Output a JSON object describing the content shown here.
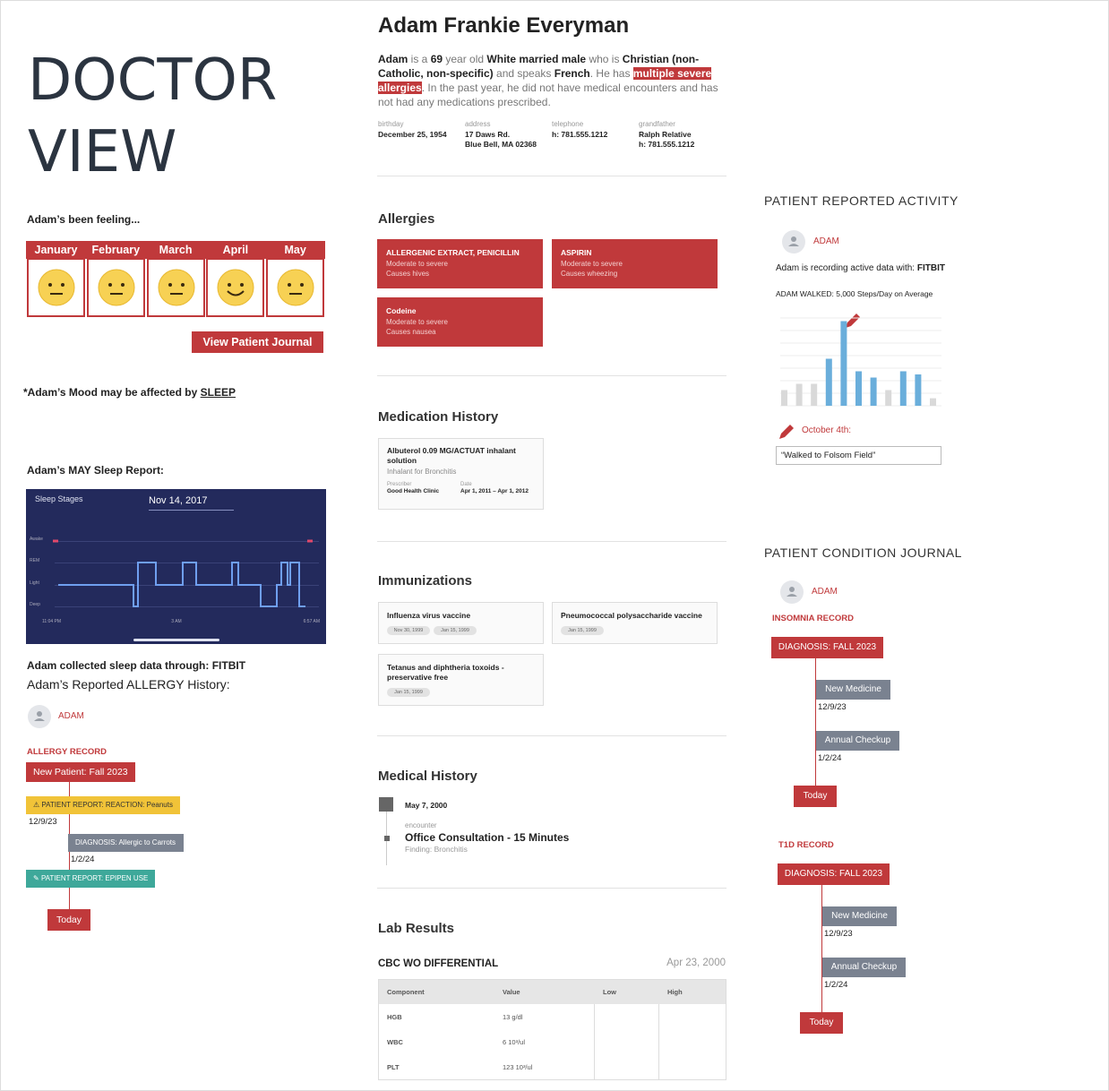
{
  "doctor_view": {
    "title": [
      "DOCTOR",
      "VIEW"
    ]
  },
  "mood": {
    "heading": "Adam’s been feeling...",
    "months": [
      {
        "name": "January",
        "face": "neutral"
      },
      {
        "name": "February",
        "face": "neutral"
      },
      {
        "name": "March",
        "face": "neutral"
      },
      {
        "name": "April",
        "face": "happy"
      },
      {
        "name": "May",
        "face": "neutral"
      }
    ],
    "button": "View Patient Journal",
    "note": "*Adam’s Mood may be affected by ",
    "note_link": "SLEEP"
  },
  "sleep": {
    "heading": "Adam’s MAY Sleep Report:",
    "chart_title": "Sleep Stages",
    "date": "Nov 14, 2017",
    "stages": [
      "Awake",
      "REM",
      "Light",
      "Deep"
    ],
    "times": [
      "11:04 PM",
      "3 AM",
      "6:57 AM"
    ],
    "source_text": "Adam collected sleep data through: ",
    "source": "FITBIT"
  },
  "allergy_history": {
    "heading": "Adam’s Reported ALLERGY History:",
    "user": "ADAM",
    "record": "ALLERGY RECORD",
    "events": [
      {
        "label": "New Patient: Fall 2023",
        "kind": "red"
      },
      {
        "label": "PATIENT REPORT: REACTION: Peanuts",
        "kind": "yellow",
        "date": "12/9/23"
      },
      {
        "label": "DIAGNOSIS: Allergic to Carrots",
        "kind": "gray",
        "date": "1/2/24"
      },
      {
        "label": "PATIENT REPORT: EPIPEN USE",
        "kind": "teal"
      },
      {
        "label": "Today",
        "kind": "red"
      }
    ]
  },
  "patient": {
    "name": "Adam Frankie Everyman",
    "summary": [
      {
        "text": "Adam",
        "style": "bold"
      },
      {
        "text": " is a ",
        "style": "plain"
      },
      {
        "text": "69",
        "style": "bold"
      },
      {
        "text": " year old ",
        "style": "plain"
      },
      {
        "text": "White married male",
        "style": "bold"
      },
      {
        "text": " who is ",
        "style": "plain"
      },
      {
        "text": "Christian (non-Catholic, non-specific)",
        "style": "bold"
      },
      {
        "text": " and speaks ",
        "style": "plain"
      },
      {
        "text": "French",
        "style": "bold"
      },
      {
        "text": ". He has ",
        "style": "plain"
      },
      {
        "text": "multiple severe allergies",
        "style": "highlight"
      },
      {
        "text": ". In the past year, he did not have medical encounters and has not had any medications prescribed.",
        "style": "plain"
      }
    ],
    "details": [
      {
        "label": "birthday",
        "lines": [
          "December 25, 1954"
        ]
      },
      {
        "label": "address",
        "lines": [
          "17 Daws Rd.",
          "Blue Bell, MA 02368"
        ]
      },
      {
        "label": "telephone",
        "lines": [
          "h: 781.555.1212"
        ]
      },
      {
        "label": "grandfather",
        "lines": [
          "Ralph Relative",
          "h: 781.555.1212"
        ]
      }
    ]
  },
  "allergies": {
    "heading": "Allergies",
    "items": [
      {
        "name": "ALLERGENIC EXTRACT, PENICILLIN",
        "severity": "Moderate to severe",
        "reaction": "Causes hives"
      },
      {
        "name": "ASPIRIN",
        "severity": "Moderate to severe",
        "reaction": "Causes wheezing"
      },
      {
        "name": "Codeine",
        "severity": "Moderate to severe",
        "reaction": "Causes nausea"
      }
    ]
  },
  "medications": {
    "heading": "Medication History",
    "items": [
      {
        "name": "Albuterol 0.09 MG/ACTUAT inhalant solution",
        "note": "Inhalant for Bronchitis",
        "prescriber_label": "Prescriber",
        "prescriber": "Good Health Clinic",
        "date_label": "Date",
        "date": "Apr 1, 2011 – Apr 1, 2012"
      }
    ]
  },
  "immunizations": {
    "heading": "Immunizations",
    "items": [
      {
        "name": "Influenza virus vaccine",
        "dates": [
          "Nov 30, 1999",
          "Jan 15, 1999"
        ]
      },
      {
        "name": "Pneumococcal polysaccharide vaccine",
        "dates": [
          "Jan 15, 1999"
        ]
      },
      {
        "name": "Tetanus and diphtheria toxoids - preservative free",
        "dates": [
          "Jan 15, 1999"
        ]
      }
    ]
  },
  "medical_history": {
    "heading": "Medical History",
    "date": "May 7, 2000",
    "kind": "encounter",
    "title": "Office Consultation - 15 Minutes",
    "finding": "Finding: Bronchitis"
  },
  "lab_results": {
    "heading": "Lab Results",
    "panel": "CBC WO DIFFERENTIAL",
    "date": "Apr 23, 2000",
    "columns": [
      "Component",
      "Value",
      "Low",
      "High"
    ],
    "rows": [
      [
        "HGB",
        "13 g/dl"
      ],
      [
        "WBC",
        "6 10³/ul"
      ],
      [
        "PLT",
        "123 10³/ul"
      ]
    ]
  },
  "activity": {
    "heading": "PATIENT REPORTED ACTIVITY",
    "user": "ADAM",
    "source_text": "Adam is recording active data with: ",
    "source": "FITBIT",
    "summary": "ADAM WALKED: 5,000 Steps/Day on Average",
    "chart": {
      "type": "bar",
      "values": [
        2500,
        3500,
        3500,
        7500,
        13500,
        5500,
        4500,
        2500,
        5500,
        5000,
        1200
      ],
      "colors": [
        "#d9d9d9",
        "#d9d9d9",
        "#d9d9d9",
        "#6aaedb",
        "#6aaedb",
        "#6aaedb",
        "#6aaedb",
        "#d9d9d9",
        "#6aaedb",
        "#6aaedb",
        "#d9d9d9"
      ],
      "ylim": [
        0,
        16000
      ]
    },
    "note_date": "October 4th:",
    "note": "“Walked to Folsom Field”"
  },
  "journal": {
    "heading": "PATIENT CONDITION JOURNAL",
    "user": "ADAM",
    "records": [
      {
        "title": "INSOMNIA RECORD",
        "events": [
          {
            "label": "DIAGNOSIS: FALL 2023"
          },
          {
            "label": "New Medicine",
            "date": "12/9/23"
          },
          {
            "label": "Annual Checkup",
            "date": "1/2/24"
          },
          {
            "label": "Today"
          }
        ]
      },
      {
        "title": "T1D RECORD",
        "events": [
          {
            "label": "DIAGNOSIS: FALL 2023"
          },
          {
            "label": "New Medicine",
            "date": "12/9/23"
          },
          {
            "label": "Annual Checkup",
            "date": "1/2/24"
          },
          {
            "label": "Today"
          }
        ]
      }
    ]
  }
}
